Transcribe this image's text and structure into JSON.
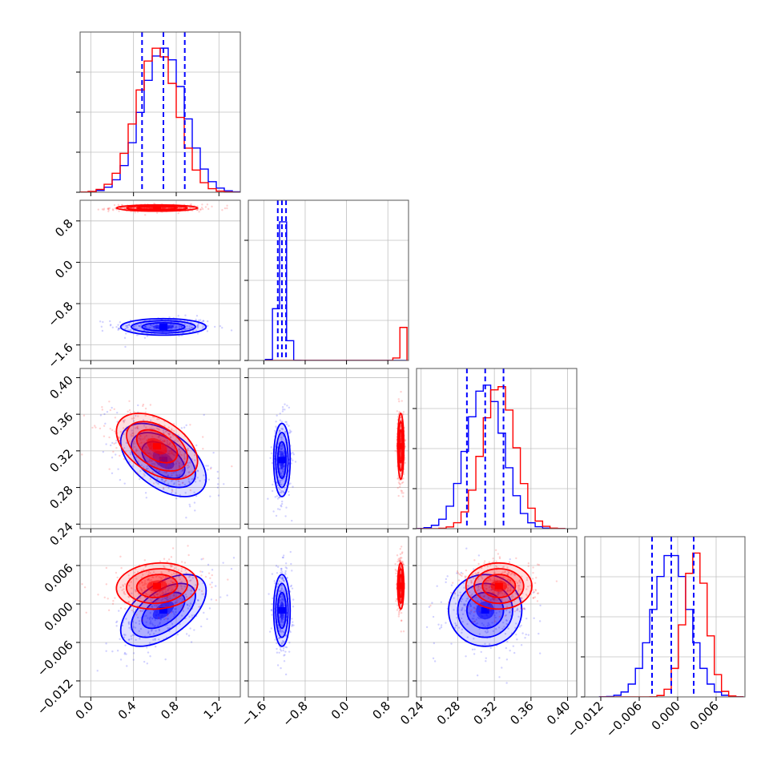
{
  "chart_data": {
    "type": "corner",
    "grid": true,
    "colors": {
      "series_a": "#0000ff",
      "series_b": "#ff0000"
    },
    "params": [
      {
        "range": [
          -0.1,
          1.4
        ],
        "ticks": [
          0.0,
          0.4,
          0.8,
          1.2
        ],
        "tick_labels": [
          "0.0",
          "0.4",
          "0.8",
          "1.2"
        ]
      },
      {
        "range": [
          -1.9,
          1.2
        ],
        "ticks": [
          -1.6,
          -0.8,
          0.0,
          0.8
        ],
        "tick_labels": [
          "−1.6",
          "−0.8",
          "0.0",
          "0.8"
        ]
      },
      {
        "range": [
          0.235,
          0.41
        ],
        "ticks": [
          0.24,
          0.28,
          0.32,
          0.36,
          0.4
        ],
        "tick_labels": [
          "0.24",
          "0.28",
          "0.32",
          "0.36",
          "0.40"
        ]
      },
      {
        "range": [
          -0.0145,
          0.0105
        ],
        "ticks": [
          -0.012,
          -0.006,
          0.0,
          0.006
        ],
        "tick_labels": [
          "−0.012",
          "−0.006",
          "0.000",
          "0.006"
        ]
      }
    ],
    "series": [
      {
        "color": "#0000ff",
        "mean": [
          0.68,
          -1.25,
          0.31,
          -0.001
        ],
        "std": [
          0.2,
          0.08,
          0.02,
          0.0028
        ],
        "corr": [
          0,
          0,
          -0.5,
          0.55
        ],
        "quantiles": [
          [
            0.48,
            0.68,
            0.88
          ],
          [
            -1.33,
            -1.25,
            -1.17
          ],
          [
            0.29,
            0.31,
            0.33
          ],
          [
            -0.004,
            -0.001,
            0.0025
          ]
        ]
      },
      {
        "color": "#ff0000",
        "mean": [
          0.62,
          1.05,
          0.325,
          0.0028
        ],
        "std": [
          0.19,
          0.03,
          0.018,
          0.0018
        ],
        "corr": [
          0,
          0,
          -0.45,
          0.1
        ]
      }
    ]
  }
}
